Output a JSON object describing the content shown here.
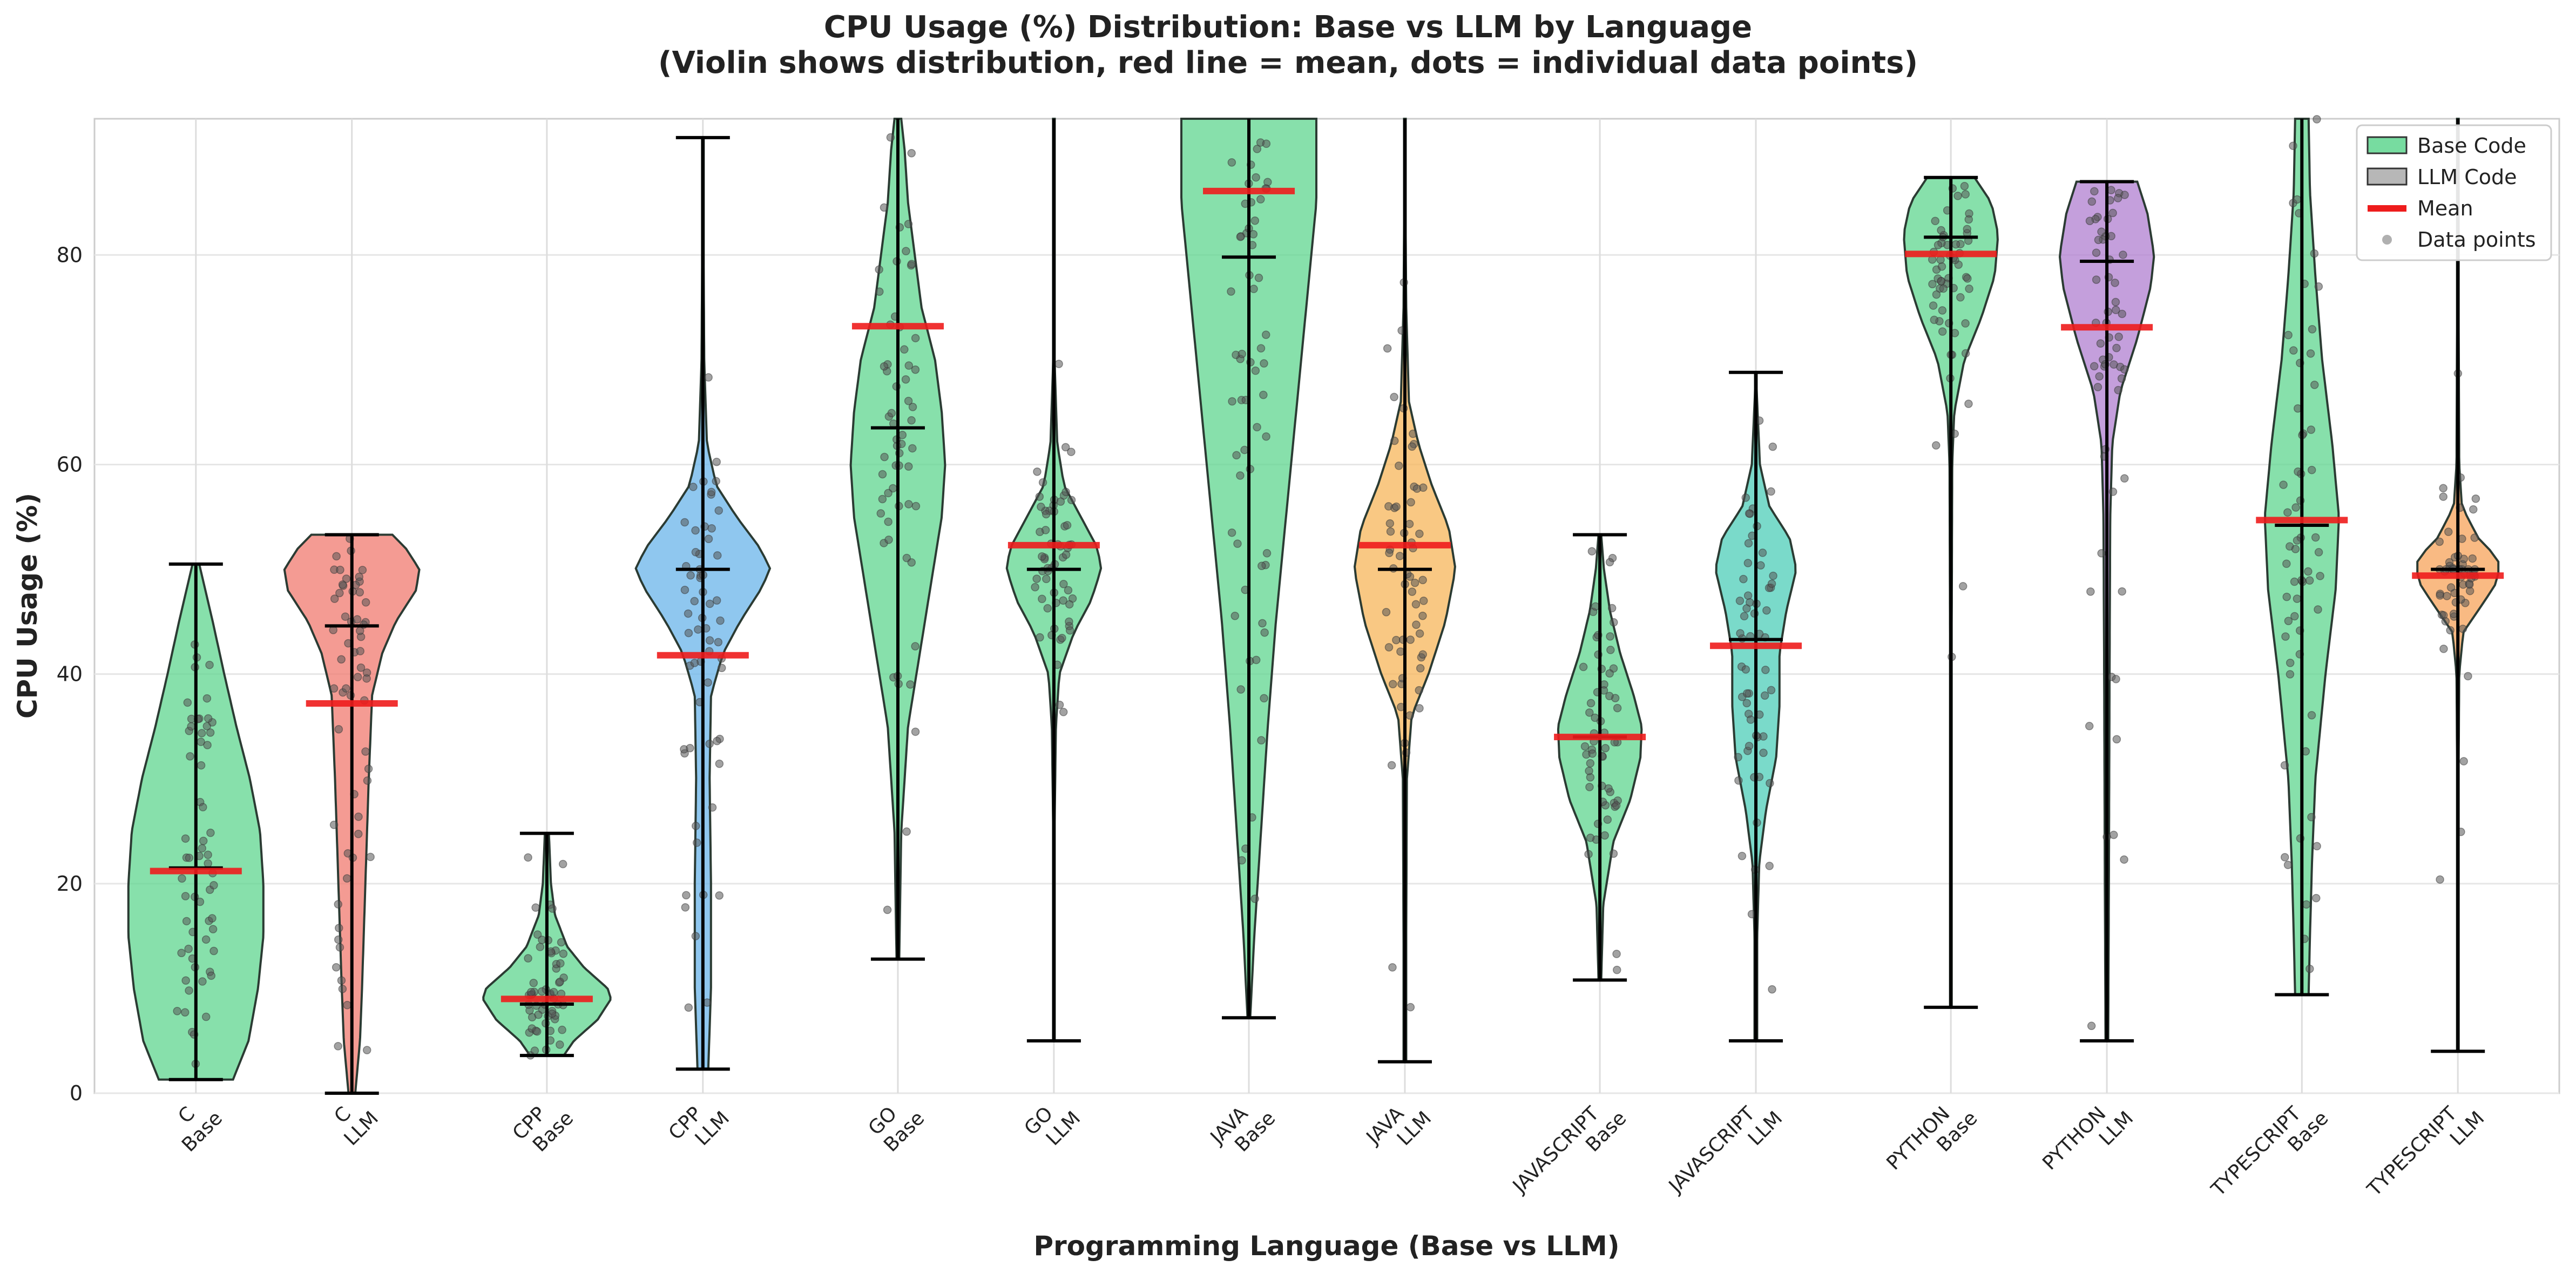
{
  "chart_data": {
    "type": "violin",
    "title": "CPU Usage (%) Distribution: Base vs LLM by Language",
    "subtitle": "(Violin shows distribution, red line = mean, dots = individual data points)",
    "xlabel": "Programming Language (Base vs LLM)",
    "ylabel": "CPU Usage (%)",
    "ylim": [
      0,
      93
    ],
    "yticks": [
      0,
      20,
      40,
      60,
      80
    ],
    "grid": true,
    "legend": {
      "placement": "top-right",
      "entries": [
        {
          "label": "Base Code",
          "kind": "patch",
          "color": "#5fd68f"
        },
        {
          "label": "LLM Code",
          "kind": "patch",
          "color": "#aaaaaa"
        },
        {
          "label": "Mean",
          "kind": "line",
          "color": "#ee1c1c"
        },
        {
          "label": "Data points",
          "kind": "dot",
          "color": "#b0b0b0"
        }
      ]
    },
    "mean_color": "#ee1c1c",
    "groups": [
      {
        "language": "C",
        "tag": "Base",
        "color": "#5fd68f",
        "x": 1.0,
        "min": 1.3,
        "max": 50.5,
        "median": 21.5,
        "mean": 21.2,
        "profile": [
          [
            1.3,
            0.55
          ],
          [
            5,
            0.78
          ],
          [
            10,
            0.92
          ],
          [
            15,
            1.0
          ],
          [
            20,
            1.0
          ],
          [
            25,
            0.95
          ],
          [
            30,
            0.8
          ],
          [
            35,
            0.6
          ],
          [
            40,
            0.42
          ],
          [
            45,
            0.25
          ],
          [
            50.5,
            0.05
          ]
        ]
      },
      {
        "language": "C",
        "tag": "LLM",
        "color": "#f07a6f",
        "x": 2.0,
        "min": 0.0,
        "max": 53.3,
        "median": 44.6,
        "mean": 37.2,
        "profile": [
          [
            0,
            0.05
          ],
          [
            5,
            0.12
          ],
          [
            10,
            0.15
          ],
          [
            20,
            0.2
          ],
          [
            30,
            0.25
          ],
          [
            38,
            0.3
          ],
          [
            42,
            0.45
          ],
          [
            45,
            0.65
          ],
          [
            48,
            0.95
          ],
          [
            50,
            1.0
          ],
          [
            52,
            0.8
          ],
          [
            53.3,
            0.6
          ]
        ]
      },
      {
        "language": "CPP",
        "tag": "Base",
        "color": "#5fd68f",
        "x": 3.25,
        "min": 3.6,
        "max": 24.8,
        "median": 8.5,
        "mean": 9.0,
        "profile": [
          [
            3.6,
            0.25
          ],
          [
            5,
            0.4
          ],
          [
            7,
            0.75
          ],
          [
            9,
            0.95
          ],
          [
            10,
            0.9
          ],
          [
            12,
            0.55
          ],
          [
            14,
            0.3
          ],
          [
            17,
            0.12
          ],
          [
            20,
            0.06
          ],
          [
            24.8,
            0.03
          ]
        ]
      },
      {
        "language": "CPP",
        "tag": "LLM",
        "color": "#6ab4ea",
        "x": 4.25,
        "min": 2.3,
        "max": 91.2,
        "median": 50.0,
        "mean": 41.8,
        "profile": [
          [
            2.3,
            0.08
          ],
          [
            10,
            0.12
          ],
          [
            20,
            0.12
          ],
          [
            30,
            0.1
          ],
          [
            38,
            0.12
          ],
          [
            42,
            0.3
          ],
          [
            45,
            0.55
          ],
          [
            48,
            0.85
          ],
          [
            50,
            1.0
          ],
          [
            52,
            0.85
          ],
          [
            55,
            0.5
          ],
          [
            58,
            0.2
          ],
          [
            62,
            0.06
          ],
          [
            70,
            0.02
          ],
          [
            91.2,
            0.0
          ]
        ]
      },
      {
        "language": "GO",
        "tag": "Base",
        "color": "#5fd68f",
        "x": 5.5,
        "min": 12.8,
        "max": 93.0,
        "median": 63.5,
        "mean": 73.2,
        "profile": [
          [
            12.8,
            0.02
          ],
          [
            25,
            0.05
          ],
          [
            35,
            0.15
          ],
          [
            45,
            0.4
          ],
          [
            55,
            0.65
          ],
          [
            60,
            0.7
          ],
          [
            65,
            0.65
          ],
          [
            70,
            0.55
          ],
          [
            75,
            0.35
          ],
          [
            80,
            0.25
          ],
          [
            85,
            0.15
          ],
          [
            90,
            0.1
          ],
          [
            93,
            0.05
          ]
        ]
      },
      {
        "language": "GO",
        "tag": "LLM",
        "color": "#5fd68f",
        "x": 6.5,
        "min": 5.0,
        "max": 93.0,
        "median": 50.0,
        "mean": 52.3,
        "profile": [
          [
            5,
            0.0
          ],
          [
            25,
            0.01
          ],
          [
            35,
            0.03
          ],
          [
            40,
            0.08
          ],
          [
            44,
            0.3
          ],
          [
            47,
            0.55
          ],
          [
            50,
            0.7
          ],
          [
            52,
            0.65
          ],
          [
            55,
            0.4
          ],
          [
            58,
            0.15
          ],
          [
            62,
            0.05
          ],
          [
            70,
            0.01
          ],
          [
            93,
            0.0
          ]
        ]
      },
      {
        "language": "JAVA",
        "tag": "Base",
        "color": "#5fd68f",
        "x": 7.75,
        "min": 7.2,
        "max": 93.0,
        "median": 79.8,
        "mean": 86.1,
        "profile": [
          [
            7.2,
            0.02
          ],
          [
            15,
            0.08
          ],
          [
            25,
            0.18
          ],
          [
            35,
            0.28
          ],
          [
            45,
            0.4
          ],
          [
            55,
            0.55
          ],
          [
            65,
            0.7
          ],
          [
            75,
            0.85
          ],
          [
            85,
            1.0
          ],
          [
            93,
            1.0
          ]
        ]
      },
      {
        "language": "JAVA",
        "tag": "LLM",
        "color": "#f7b55a",
        "x": 8.75,
        "min": 3.0,
        "max": 93.0,
        "median": 50.0,
        "mean": 52.3,
        "profile": [
          [
            3,
            0.02
          ],
          [
            15,
            0.02
          ],
          [
            30,
            0.03
          ],
          [
            36,
            0.1
          ],
          [
            40,
            0.35
          ],
          [
            45,
            0.6
          ],
          [
            50,
            0.75
          ],
          [
            54,
            0.65
          ],
          [
            58,
            0.4
          ],
          [
            62,
            0.2
          ],
          [
            66,
            0.06
          ],
          [
            75,
            0.02
          ],
          [
            93,
            0.0
          ]
        ]
      },
      {
        "language": "JAVASCRIPT",
        "tag": "Base",
        "color": "#5fd68f",
        "x": 10.0,
        "min": 10.8,
        "max": 53.3,
        "median": 34.0,
        "mean": 34.0,
        "profile": [
          [
            10.8,
            0.02
          ],
          [
            18,
            0.05
          ],
          [
            24,
            0.2
          ],
          [
            28,
            0.45
          ],
          [
            32,
            0.6
          ],
          [
            35,
            0.62
          ],
          [
            38,
            0.5
          ],
          [
            42,
            0.3
          ],
          [
            46,
            0.15
          ],
          [
            50,
            0.06
          ],
          [
            53.3,
            0.02
          ]
        ]
      },
      {
        "language": "JAVASCRIPT",
        "tag": "LLM",
        "color": "#4ecdb8",
        "x": 11.0,
        "min": 5.0,
        "max": 68.8,
        "median": 43.3,
        "mean": 42.7,
        "profile": [
          [
            5,
            0.02
          ],
          [
            15,
            0.02
          ],
          [
            22,
            0.05
          ],
          [
            27,
            0.15
          ],
          [
            32,
            0.3
          ],
          [
            37,
            0.35
          ],
          [
            42,
            0.35
          ],
          [
            46,
            0.45
          ],
          [
            50,
            0.6
          ],
          [
            53,
            0.5
          ],
          [
            56,
            0.2
          ],
          [
            60,
            0.06
          ],
          [
            68.8,
            0.0
          ]
        ]
      },
      {
        "language": "PYTHON",
        "tag": "Base",
        "color": "#5fd68f",
        "x": 12.25,
        "min": 8.2,
        "max": 87.4,
        "median": 81.7,
        "mean": 80.1,
        "profile": [
          [
            8.2,
            0.0
          ],
          [
            40,
            0.01
          ],
          [
            60,
            0.02
          ],
          [
            65,
            0.05
          ],
          [
            70,
            0.2
          ],
          [
            74,
            0.45
          ],
          [
            78,
            0.65
          ],
          [
            82,
            0.7
          ],
          [
            85,
            0.6
          ],
          [
            87.4,
            0.35
          ]
        ]
      },
      {
        "language": "PYTHON",
        "tag": "LLM",
        "color": "#b07fd0",
        "x": 13.25,
        "min": 5.0,
        "max": 87.0,
        "median": 79.4,
        "mean": 73.1,
        "profile": [
          [
            5,
            0.02
          ],
          [
            20,
            0.03
          ],
          [
            40,
            0.04
          ],
          [
            55,
            0.05
          ],
          [
            62,
            0.08
          ],
          [
            67,
            0.2
          ],
          [
            72,
            0.45
          ],
          [
            77,
            0.65
          ],
          [
            80,
            0.7
          ],
          [
            84,
            0.6
          ],
          [
            87,
            0.45
          ]
        ]
      },
      {
        "language": "TYPESCRIPT",
        "tag": "Base",
        "color": "#5fd68f",
        "x": 14.5,
        "min": 9.4,
        "max": 93.0,
        "median": 54.2,
        "mean": 54.7,
        "profile": [
          [
            9.4,
            0.1
          ],
          [
            15,
            0.12
          ],
          [
            22,
            0.15
          ],
          [
            30,
            0.2
          ],
          [
            40,
            0.35
          ],
          [
            48,
            0.5
          ],
          [
            55,
            0.55
          ],
          [
            62,
            0.45
          ],
          [
            70,
            0.3
          ],
          [
            78,
            0.2
          ],
          [
            86,
            0.12
          ],
          [
            93,
            0.1
          ]
        ]
      },
      {
        "language": "TYPESCRIPT",
        "tag": "LLM",
        "color": "#f7a35a",
        "x": 15.5,
        "min": 4.0,
        "max": 93.0,
        "median": 50.0,
        "mean": 49.4,
        "profile": [
          [
            4,
            0.0
          ],
          [
            30,
            0.01
          ],
          [
            40,
            0.02
          ],
          [
            44,
            0.08
          ],
          [
            47,
            0.4
          ],
          [
            49,
            0.6
          ],
          [
            51,
            0.6
          ],
          [
            53,
            0.3
          ],
          [
            56,
            0.06
          ],
          [
            60,
            0.02
          ],
          [
            93,
            0.0
          ]
        ]
      }
    ]
  }
}
